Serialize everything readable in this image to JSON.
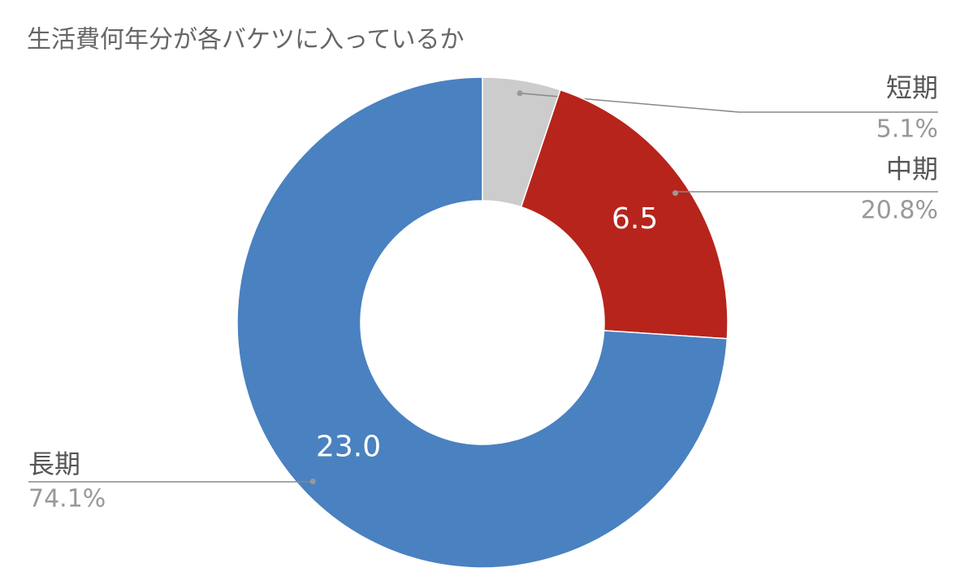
{
  "chart_data": {
    "type": "donut",
    "title": "生活費何年分が各バケツに入っているか",
    "categories": [
      "短期",
      "中期",
      "長期"
    ],
    "values": [
      1.6,
      6.5,
      23.0
    ],
    "value_labels": [
      null,
      "6.5",
      "23.0"
    ],
    "percent_labels": [
      "5.1%",
      "20.8%",
      "74.1%"
    ],
    "colors": [
      "#cccccc",
      "#b7241b",
      "#4a81c0"
    ]
  }
}
